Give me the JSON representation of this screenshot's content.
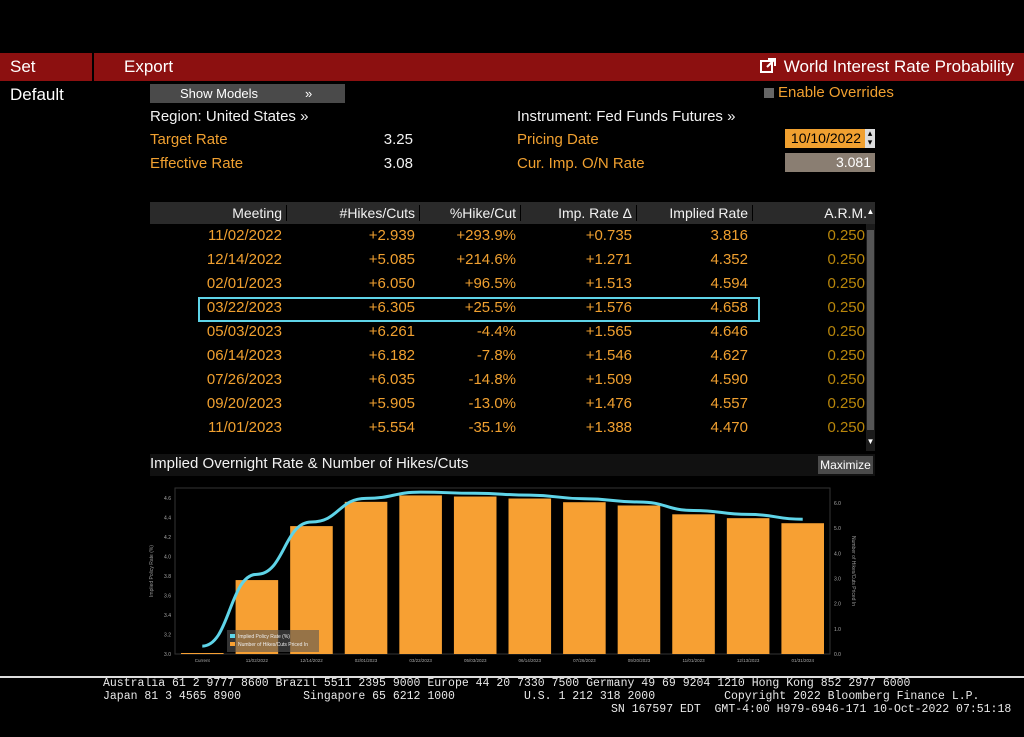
{
  "toolbar": {
    "set_default": "Set Default",
    "export": "Export",
    "title": "World Interest Rate Probability",
    "title_icon": "external-link-icon"
  },
  "controls": {
    "show_models": "Show Models",
    "show_models_chevron": "»",
    "enable_overrides": "Enable Overrides"
  },
  "info": {
    "region": "Region: United States »",
    "instrument": "Instrument: Fed Funds Futures »",
    "target_rate_label": "Target Rate",
    "target_rate_value": "3.25",
    "effective_rate_label": "Effective Rate",
    "effective_rate_value": "3.08",
    "pricing_date_label": "Pricing Date",
    "pricing_date_value": "10/10/2022",
    "on_rate_label": "Cur. Imp. O/N Rate",
    "on_rate_value": "3.081"
  },
  "table": {
    "headers": [
      "Meeting",
      "#Hikes/Cuts",
      "%Hike/Cut",
      "Imp. Rate Δ",
      "Implied Rate",
      "A.R.M."
    ],
    "rows": [
      [
        "11/02/2022",
        "+2.939",
        "+293.9%",
        "+0.735",
        "3.816",
        "0.250"
      ],
      [
        "12/14/2022",
        "+5.085",
        "+214.6%",
        "+1.271",
        "4.352",
        "0.250"
      ],
      [
        "02/01/2023",
        "+6.050",
        "+96.5%",
        "+1.513",
        "4.594",
        "0.250"
      ],
      [
        "03/22/2023",
        "+6.305",
        "+25.5%",
        "+1.576",
        "4.658",
        "0.250"
      ],
      [
        "05/03/2023",
        "+6.261",
        "-4.4%",
        "+1.565",
        "4.646",
        "0.250"
      ],
      [
        "06/14/2023",
        "+6.182",
        "-7.8%",
        "+1.546",
        "4.627",
        "0.250"
      ],
      [
        "07/26/2023",
        "+6.035",
        "-14.8%",
        "+1.509",
        "4.590",
        "0.250"
      ],
      [
        "09/20/2023",
        "+5.905",
        "-13.0%",
        "+1.476",
        "4.557",
        "0.250"
      ],
      [
        "11/01/2023",
        "+5.554",
        "-35.1%",
        "+1.388",
        "4.470",
        "0.250"
      ]
    ],
    "highlighted_row": 3
  },
  "chart_section": {
    "title": "Implied Overnight Rate & Number of Hikes/Cuts",
    "maximize": "Maximize"
  },
  "chart_data": {
    "type": "bar",
    "title": "Implied Overnight Rate & Number of Hikes/Cuts",
    "categories": [
      "Current",
      "11/02/2022",
      "12/14/2022",
      "02/01/2023",
      "03/22/2023",
      "05/03/2023",
      "06/14/2023",
      "07/26/2023",
      "09/20/2023",
      "11/01/2023",
      "12/13/2023",
      "01/31/2024"
    ],
    "series": [
      {
        "name": "Implied Policy Rate (%)",
        "type": "line",
        "axis": "left",
        "color": "#5fd4e8",
        "values": [
          3.081,
          3.816,
          4.352,
          4.594,
          4.658,
          4.646,
          4.627,
          4.59,
          4.557,
          4.47,
          4.43,
          4.38
        ]
      },
      {
        "name": "Number of Hikes/Cuts Priced In",
        "type": "bar",
        "axis": "right",
        "color": "#f7a033",
        "values": [
          0,
          2.939,
          5.085,
          6.05,
          6.305,
          6.261,
          6.182,
          6.035,
          5.905,
          5.554,
          5.4,
          5.2
        ]
      }
    ],
    "ylabel": "Implied Policy Rate (%)",
    "y2label": "Number of Hikes/Cuts Priced In",
    "ylim": [
      3.0,
      4.7
    ],
    "y2lim": [
      0,
      6.6
    ],
    "yticks": [
      "3.0",
      "3.2",
      "3.4",
      "3.6",
      "3.8",
      "4.0",
      "4.2",
      "4.4",
      "4.6"
    ],
    "y2ticks": [
      "0.0",
      "1.0",
      "2.0",
      "3.0",
      "4.0",
      "5.0",
      "6.0"
    ],
    "legend": [
      "Implied Policy Rate (%)",
      "Number of Hikes/Cuts Priced In"
    ],
    "legend_position": "bottom-left"
  },
  "footer": {
    "line1": "Australia 61 2 9777 8600 Brazil 5511 2395 9000 Europe 44 20 7330 7500 Germany 49 69 9204 1210 Hong Kong 852 2977 6000",
    "line2": "Japan 81 3 4565 8900         Singapore 65 6212 1000          U.S. 1 212 318 2000          Copyright 2022 Bloomberg Finance L.P.",
    "line3": "SN 167597 EDT  GMT-4:00 H979-6946-171 10-Oct-2022 07:51:18"
  }
}
